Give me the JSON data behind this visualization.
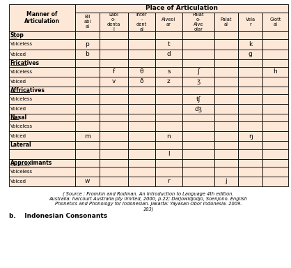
{
  "bg_color": "#fde8d8",
  "figsize": [
    4.18,
    3.84
  ],
  "dpi": 100,
  "col_header_labels": [
    "Bil\nabi\nal",
    "Labi\no-\ndenta\nl",
    "Inter\n-\ndent\nal",
    "Alveol\nar",
    "Palat\no-\nAlve\nolar",
    "Palat\nal",
    "Vela\nr",
    "Glott\nal"
  ],
  "row_groups": [
    {
      "name": "Stop",
      "underline": true,
      "rows": [
        {
          "label": "Voiceless",
          "cells": [
            "p",
            "",
            "",
            "t",
            "",
            "",
            "k",
            ""
          ]
        },
        {
          "label": "Voiced",
          "cells": [
            "b",
            "",
            "",
            "d",
            "",
            "",
            "g",
            ""
          ]
        }
      ]
    },
    {
      "name": "Fricatives",
      "underline": true,
      "rows": [
        {
          "label": "Voiceless",
          "cells": [
            "",
            "f",
            "θ",
            "s",
            "∫",
            "",
            "",
            "h"
          ]
        },
        {
          "label": "Voiced",
          "cells": [
            "",
            "v",
            "ð",
            "z",
            "ʒ",
            "",
            "",
            ""
          ]
        }
      ]
    },
    {
      "name": "Affricatives",
      "underline": true,
      "rows": [
        {
          "label": "Voiceless",
          "cells": [
            "",
            "",
            "",
            "",
            "tʃ",
            "",
            "",
            ""
          ]
        },
        {
          "label": "Voiced",
          "cells": [
            "",
            "",
            "",
            "",
            "dʒ",
            "",
            "",
            ""
          ]
        }
      ]
    },
    {
      "name": "Nasal",
      "underline": true,
      "rows": [
        {
          "label": "Voiceless",
          "cells": [
            "",
            "",
            "",
            "",
            "",
            "",
            "",
            ""
          ]
        },
        {
          "label": "Voiced",
          "cells": [
            "m",
            "",
            "",
            "n",
            "",
            "",
            "ŋ",
            ""
          ]
        }
      ]
    },
    {
      "name": "Lateral",
      "underline": false,
      "rows": [
        {
          "label": "",
          "cells": [
            "",
            "",
            "",
            "l",
            "",
            "",
            "",
            ""
          ]
        }
      ]
    },
    {
      "name": "Approximants",
      "underline": true,
      "rows": [
        {
          "label": "Voiceless",
          "cells": [
            "",
            "",
            "",
            "",
            "",
            "",
            "",
            ""
          ]
        },
        {
          "label": "Voiced",
          "cells": [
            "w",
            "",
            "",
            "r",
            "",
            "j",
            "",
            ""
          ]
        }
      ]
    }
  ],
  "source_text": "( Source : Fromkin and Rodman. An Introduction to Language 4th edition.\nAustralia: harcourt Australia pty limited, 2000, p.22; Darjowidjodjo, Soenjono. English\nPhonetics and Phonology for Indonesian. Jakarta: Yayasan Obor Indonesia. 2009.\n103)",
  "bottom_text": "b.    Indonesian Consonants"
}
